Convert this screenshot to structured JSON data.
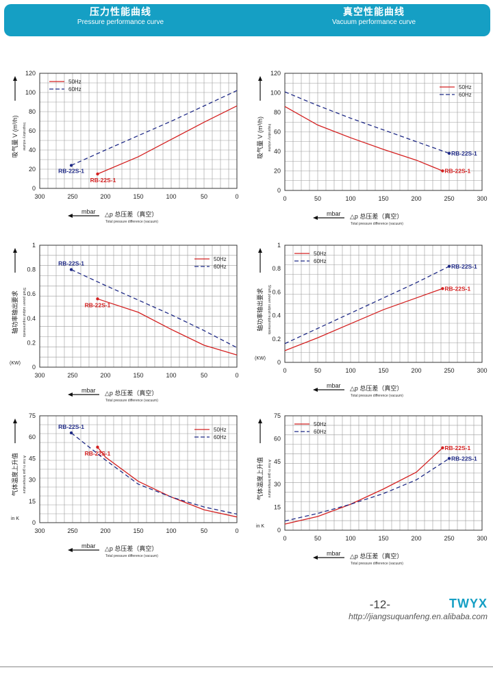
{
  "header": {
    "left": {
      "cn": "压力性能曲线",
      "en": "Pressure performance curve"
    },
    "right": {
      "cn": "真空性能曲线",
      "en": "Vacuum performance curve"
    }
  },
  "footer": {
    "page": "-12-",
    "brand": "TWYX",
    "url": "http://jiangsuquanfeng.en.alibaba.com"
  },
  "colors": {
    "line50": "#d42020",
    "line60": "#1f2a86",
    "header": "#159fc4"
  },
  "chart_data": [
    {
      "id": "p-vol",
      "type": "line",
      "xdir": "reverse",
      "xlim": [
        0,
        300
      ],
      "xticks": [
        300,
        250,
        200,
        150,
        100,
        50,
        0
      ],
      "ylim": [
        0,
        120
      ],
      "yticks": [
        0,
        20,
        40,
        60,
        80,
        100,
        120
      ],
      "ylabel_cn": "吸气量 V (m³/h)",
      "ylabel_en": "Inspiratory volume",
      "xlabel_unit": "mbar",
      "xlabel_cn": "△p  总压差（真空）",
      "xlabel_en": "Total pressure difference (vacuum)",
      "legend": [
        "50Hz",
        "60Hz"
      ],
      "legend_pos": "top-left",
      "series": [
        {
          "name": "50Hz",
          "x": [
            212,
            150,
            100,
            50,
            0
          ],
          "y": [
            15,
            33,
            51,
            69,
            86
          ],
          "marker_end": "start",
          "label": "RB-22S-1"
        },
        {
          "name": "60Hz",
          "x": [
            252,
            200,
            150,
            100,
            50,
            0
          ],
          "y": [
            24,
            40,
            55,
            70,
            86,
            102
          ],
          "marker_end": "start",
          "label": "RB-22S-1"
        }
      ]
    },
    {
      "id": "v-vol",
      "type": "line",
      "xdir": "normal",
      "xlim": [
        0,
        300
      ],
      "xticks": [
        0,
        50,
        100,
        150,
        200,
        250,
        300
      ],
      "ylim": [
        0,
        120
      ],
      "yticks": [
        0,
        20,
        40,
        60,
        80,
        100,
        120
      ],
      "ylabel_cn": "吸气量 V (m³/h)",
      "ylabel_en": "Inspiratory volume",
      "xlabel_unit": "mbar",
      "xlabel_cn": "△p  总压差（真空）",
      "xlabel_en": "Total pressure difference (vacuum)",
      "legend": [
        "50Hz",
        "60Hz"
      ],
      "legend_pos": "top-right",
      "series": [
        {
          "name": "50Hz",
          "x": [
            0,
            50,
            100,
            150,
            200,
            240
          ],
          "y": [
            86,
            67,
            54,
            42,
            31,
            20
          ],
          "marker_end": "end",
          "label": "RB-22S-1"
        },
        {
          "name": "60Hz",
          "x": [
            0,
            50,
            100,
            150,
            200,
            250
          ],
          "y": [
            101,
            87,
            74,
            62,
            50,
            38
          ],
          "marker_end": "end",
          "label": "RB-22S-1"
        }
      ]
    },
    {
      "id": "p-pow",
      "type": "line",
      "xdir": "reverse",
      "xlim": [
        0,
        300
      ],
      "xticks": [
        300,
        250,
        200,
        150,
        100,
        50,
        0
      ],
      "ylim": [
        0,
        1
      ],
      "yticks": [
        0,
        0.2,
        0.4,
        0.6,
        0.8,
        1
      ],
      "ylabel_cn": "轴功率输出要求",
      "ylabel_unit": "(KW)",
      "ylabel_en": "Shaft power output requirements",
      "xlabel_unit": "mbar",
      "xlabel_cn": "△p  总压差（真空）",
      "xlabel_en": "Total pressure difference (vacuum)",
      "legend": [
        "50Hz",
        "60Hz"
      ],
      "legend_pos": "top-right",
      "series": [
        {
          "name": "50Hz",
          "x": [
            212,
            150,
            100,
            50,
            0
          ],
          "y": [
            0.56,
            0.45,
            0.31,
            0.18,
            0.1
          ],
          "marker_end": "start",
          "label": "RB-22S-1"
        },
        {
          "name": "60Hz",
          "x": [
            252,
            200,
            150,
            100,
            50,
            0
          ],
          "y": [
            0.8,
            0.67,
            0.55,
            0.43,
            0.3,
            0.16
          ],
          "marker_end": "start",
          "label": "RB-22S-1"
        }
      ]
    },
    {
      "id": "v-pow",
      "type": "line",
      "xdir": "normal",
      "xlim": [
        0,
        300
      ],
      "xticks": [
        0,
        50,
        100,
        150,
        200,
        250,
        300
      ],
      "ylim": [
        0,
        1
      ],
      "yticks": [
        0,
        0.2,
        0.4,
        0.6,
        0.8,
        1
      ],
      "ylabel_cn": "轴功率输出要求",
      "ylabel_unit": "(KW)",
      "ylabel_en": "Shaft power output requirements",
      "xlabel_unit": "mbar",
      "xlabel_cn": "△p  总压差（真空）",
      "xlabel_en": "Total pressure difference (vacuum)",
      "legend": [
        "50Hz",
        "60Hz"
      ],
      "legend_pos": "top-left",
      "series": [
        {
          "name": "50Hz",
          "x": [
            0,
            50,
            100,
            150,
            200,
            240
          ],
          "y": [
            0.1,
            0.21,
            0.33,
            0.45,
            0.55,
            0.63
          ],
          "marker_end": "end",
          "label": "RB-22S-1"
        },
        {
          "name": "60Hz",
          "x": [
            0,
            50,
            100,
            150,
            200,
            250
          ],
          "y": [
            0.16,
            0.29,
            0.42,
            0.55,
            0.68,
            0.82
          ],
          "marker_end": "end",
          "label": "RB-22S-1"
        }
      ]
    },
    {
      "id": "p-temp",
      "type": "line",
      "xdir": "reverse",
      "xlim": [
        0,
        300
      ],
      "xticks": [
        300,
        250,
        200,
        150,
        100,
        50,
        0
      ],
      "ylim": [
        0,
        75
      ],
      "yticks": [
        0,
        15,
        30,
        45,
        60,
        75
      ],
      "ylabel_cn": "气体温度上升值",
      "ylabel_unit": "in K",
      "ylabel_en": "A rise in gas temperature",
      "xlabel_unit": "mbar",
      "xlabel_cn": "△p  总压差（真空）",
      "xlabel_en": "Total pressure difference (vacuum)",
      "legend": [
        "50Hz",
        "60Hz"
      ],
      "legend_pos": "top-right",
      "series": [
        {
          "name": "50Hz",
          "x": [
            212,
            200,
            150,
            100,
            50,
            0
          ],
          "y": [
            53,
            46,
            29,
            18,
            9,
            4
          ],
          "marker_end": "start",
          "label": "RB-22S-1"
        },
        {
          "name": "60Hz",
          "x": [
            252,
            200,
            150,
            100,
            50,
            0
          ],
          "y": [
            63,
            44,
            27,
            18,
            11,
            6
          ],
          "marker_end": "start",
          "label": "RB-22S-1"
        }
      ]
    },
    {
      "id": "v-temp",
      "type": "line",
      "xdir": "normal",
      "xlim": [
        0,
        300
      ],
      "xticks": [
        0,
        50,
        100,
        150,
        200,
        250,
        300
      ],
      "ylim": [
        0,
        75
      ],
      "yticks": [
        0,
        15,
        30,
        45,
        60,
        75
      ],
      "ylabel_cn": "气体温度上升值",
      "ylabel_unit": "in K",
      "ylabel_en": "A rise in gas temperature",
      "xlabel_unit": "mbar",
      "xlabel_cn": "△p  总压差（真空）",
      "xlabel_en": "Total pressure difference (vacuum)",
      "legend": [
        "50Hz",
        "60Hz"
      ],
      "legend_pos": "top-left",
      "series": [
        {
          "name": "50Hz",
          "x": [
            0,
            50,
            100,
            150,
            200,
            240
          ],
          "y": [
            4,
            9,
            17,
            27,
            38,
            54
          ],
          "marker_end": "end",
          "label": "RB-22S-1"
        },
        {
          "name": "60Hz",
          "x": [
            0,
            50,
            100,
            150,
            200,
            250
          ],
          "y": [
            6,
            11,
            17,
            24,
            33,
            47
          ],
          "marker_end": "end",
          "label": "RB-22S-1"
        }
      ]
    }
  ]
}
